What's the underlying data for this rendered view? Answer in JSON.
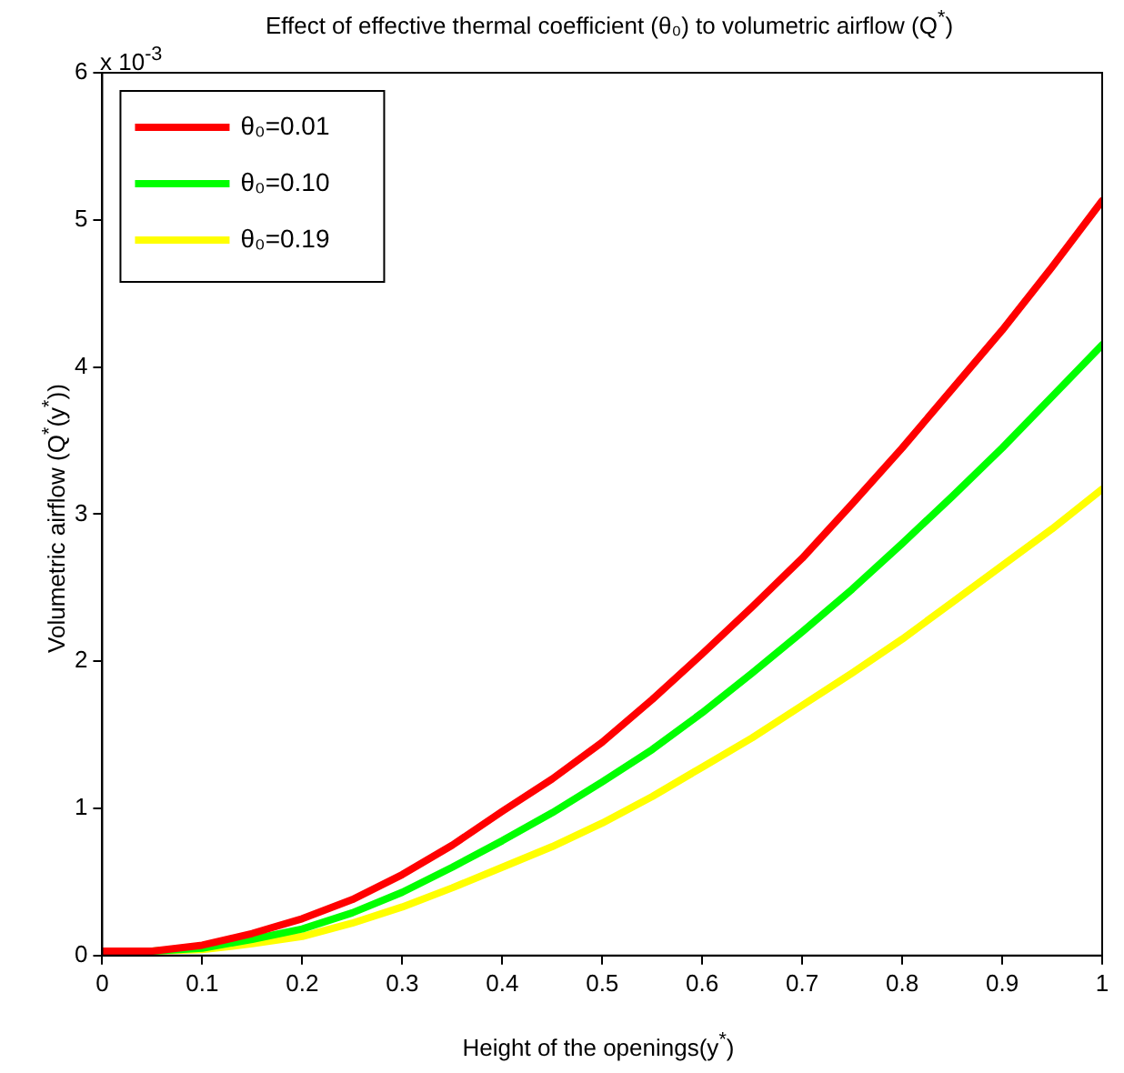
{
  "chart_data": {
    "type": "line",
    "title": "Effect of effective thermal coefficient (θ₀) to volumetric airflow (Q$^{*}$)",
    "xlabel": "Height of the openings(y$^{*}$)",
    "ylabel": "Volumetric airflow (Q$^{*}$(y$^{*}$))",
    "annotations": [
      "x 10$^{-3}$"
    ],
    "x": [
      0,
      0.05,
      0.1,
      0.15,
      0.2,
      0.25,
      0.3,
      0.35,
      0.4,
      0.45,
      0.5,
      0.55,
      0.6,
      0.65,
      0.7,
      0.75,
      0.8,
      0.85,
      0.9,
      0.95,
      1
    ],
    "series": [
      {
        "name": "θ₀=0.01",
        "color": "#ff0000",
        "values": [
          0.03,
          0.03,
          0.07,
          0.15,
          0.25,
          0.38,
          0.55,
          0.75,
          0.98,
          1.2,
          1.45,
          1.74,
          2.05,
          2.37,
          2.7,
          3.07,
          3.45,
          3.85,
          4.25,
          4.68,
          5.13
        ]
      },
      {
        "name": "θ₀=0.10",
        "color": "#00ff00",
        "values": [
          null,
          0.03,
          0.05,
          0.11,
          0.18,
          0.29,
          0.43,
          0.6,
          0.78,
          0.97,
          1.18,
          1.4,
          1.65,
          1.92,
          2.2,
          2.49,
          2.8,
          3.12,
          3.45,
          3.8,
          4.15
        ]
      },
      {
        "name": "θ₀=0.19",
        "color": "#ffff00",
        "values": [
          null,
          0.03,
          0.04,
          0.08,
          0.13,
          0.22,
          0.33,
          0.46,
          0.6,
          0.74,
          0.9,
          1.08,
          1.28,
          1.48,
          1.7,
          1.92,
          2.15,
          2.4,
          2.65,
          2.9,
          3.17
        ]
      }
    ],
    "xlim": [
      0,
      1
    ],
    "xticks": [
      0,
      0.1,
      0.2,
      0.3,
      0.4,
      0.5,
      0.6,
      0.7,
      0.8,
      0.9,
      1
    ],
    "ylim": [
      0,
      6
    ],
    "yticks": [
      0,
      1,
      2,
      3,
      4,
      5,
      6
    ],
    "grid": false,
    "legend": "top left",
    "marker": "none",
    "line_style": "solid"
  }
}
